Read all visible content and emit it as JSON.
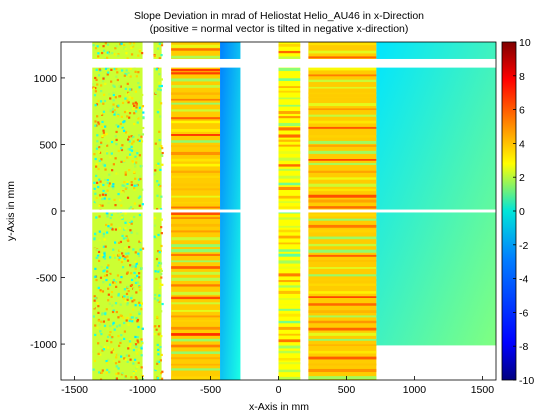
{
  "chart_data": {
    "type": "heatmap",
    "title": "Slope Deviation in mrad of Heliostat Helio_AU46 in x-Direction",
    "subtitle": "(positive = normal vector is tilted in negative x-direction)",
    "xlabel": "x-Axis in mm",
    "ylabel": "y-Axis in mm",
    "xlim": [
      -1600,
      1600
    ],
    "ylim": [
      -1270,
      1270
    ],
    "xticks": [
      -1500,
      -1000,
      -500,
      0,
      500,
      1000,
      1500
    ],
    "yticks": [
      -1000,
      -500,
      0,
      500,
      1000
    ],
    "colorbar": {
      "range": [
        -10,
        10
      ],
      "ticks": [
        -10,
        -8,
        -6,
        -4,
        -2,
        0,
        2,
        4,
        6,
        8,
        10
      ],
      "colormap": "jet"
    },
    "grid": false,
    "background_color": "#ffffff",
    "data_regions": [
      {
        "name": "left strip A",
        "x": [
          -1370,
          -1000
        ],
        "y": [
          -1270,
          1270
        ],
        "value": 1.5,
        "texture": "noisy"
      },
      {
        "name": "left strip B",
        "x": [
          -920,
          -860
        ],
        "y": [
          -1270,
          1270
        ],
        "value": 1.5,
        "texture": "noisy"
      },
      {
        "name": "wide striped facet",
        "x": [
          -790,
          -430
        ],
        "y": [
          -1270,
          1270
        ],
        "value": 3.5,
        "texture": "striped"
      },
      {
        "name": "smooth blue band",
        "x": [
          -430,
          -280
        ],
        "y": [
          -1270,
          1270
        ],
        "value": -3.5,
        "texture": "smooth"
      },
      {
        "name": "narrow facet",
        "x": [
          0,
          160
        ],
        "y": [
          -1270,
          1270
        ],
        "value": 2.5,
        "texture": "striped"
      },
      {
        "name": "center striped facet",
        "x": [
          220,
          720
        ],
        "y": [
          -1270,
          1270
        ],
        "value": 3.5,
        "texture": "striped"
      },
      {
        "name": "right smooth panel",
        "x": [
          720,
          1600
        ],
        "y": [
          -1010,
          1270
        ],
        "value": -1.5,
        "texture": "smooth"
      }
    ]
  }
}
